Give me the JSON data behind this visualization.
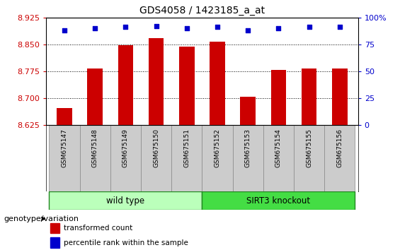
{
  "title": "GDS4058 / 1423185_a_at",
  "samples": [
    "GSM675147",
    "GSM675148",
    "GSM675149",
    "GSM675150",
    "GSM675151",
    "GSM675152",
    "GSM675153",
    "GSM675154",
    "GSM675155",
    "GSM675156"
  ],
  "transformed_count": [
    8.672,
    8.782,
    8.848,
    8.868,
    8.843,
    8.857,
    8.703,
    8.778,
    8.782,
    8.782
  ],
  "percentile_rank": [
    88,
    90,
    91,
    92,
    90,
    91,
    88,
    90,
    91,
    91
  ],
  "ylim": [
    8.625,
    8.925
  ],
  "yticks": [
    8.625,
    8.7,
    8.775,
    8.85,
    8.925
  ],
  "right_ylim": [
    0,
    100
  ],
  "right_yticks": [
    0,
    25,
    50,
    75,
    100
  ],
  "bar_color": "#cc0000",
  "dot_color": "#0000cc",
  "wild_type_indices": [
    0,
    1,
    2,
    3,
    4
  ],
  "knockout_indices": [
    5,
    6,
    7,
    8,
    9
  ],
  "wild_type_label": "wild type",
  "knockout_label": "SIRT3 knockout",
  "group_label": "genotype/variation",
  "legend_bar_label": "transformed count",
  "legend_dot_label": "percentile rank within the sample",
  "bar_width": 0.5,
  "tick_label_color": "#cc0000",
  "right_tick_color": "#0000cc",
  "wild_type_color": "#bbffbb",
  "knockout_color": "#44dd44",
  "sample_box_color": "#cccccc",
  "sample_box_edge": "#888888",
  "group_box_edge": "#228822"
}
